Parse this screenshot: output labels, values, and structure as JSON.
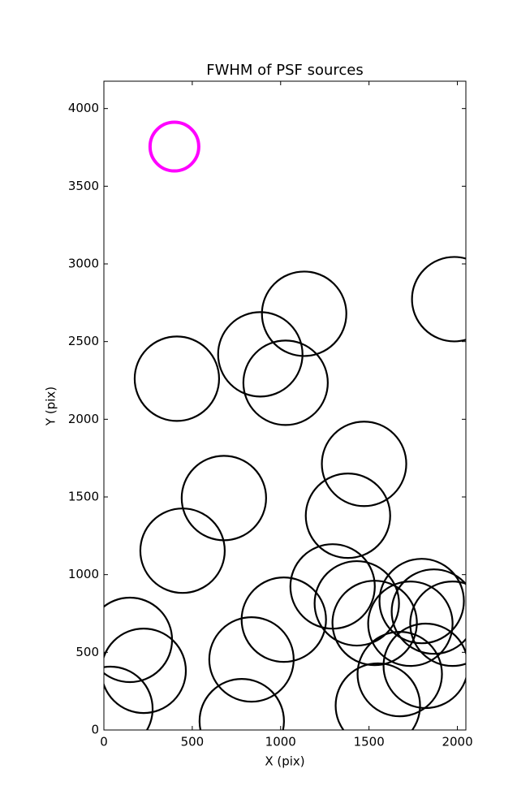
{
  "chart_data": {
    "type": "scatter",
    "title": "FWHM of PSF sources",
    "x_label": "X (pix)",
    "y_label": "Y (pix)",
    "xlim": [
      0,
      2048
    ],
    "ylim": [
      0,
      4176
    ],
    "xticks": [
      0,
      500,
      1000,
      1500,
      2000
    ],
    "yticks": [
      0,
      500,
      1000,
      1500,
      2000,
      2500,
      3000,
      3500,
      4000
    ],
    "series": [
      {
        "color": "#000000",
        "x": [
          413,
          885,
          1133,
          1028,
          1982,
          1472,
          1381,
          679,
          445,
          1294,
          1431,
          1018,
          835,
          780,
          147,
          225,
          37,
          1532,
          1798,
          1867,
          1734,
          1972,
          1674,
          1821,
          1550
        ],
        "values": [
          2261,
          2418,
          2679,
          2235,
          2773,
          1713,
          1379,
          1493,
          1154,
          924,
          815,
          710,
          454,
          57,
          580,
          381,
          136,
          689,
          830,
          762,
          684,
          684,
          360,
          413,
          157
        ]
      },
      {
        "color": "#ff00ff",
        "x": [
          399
        ],
        "values": [
          3755
        ]
      }
    ]
  }
}
